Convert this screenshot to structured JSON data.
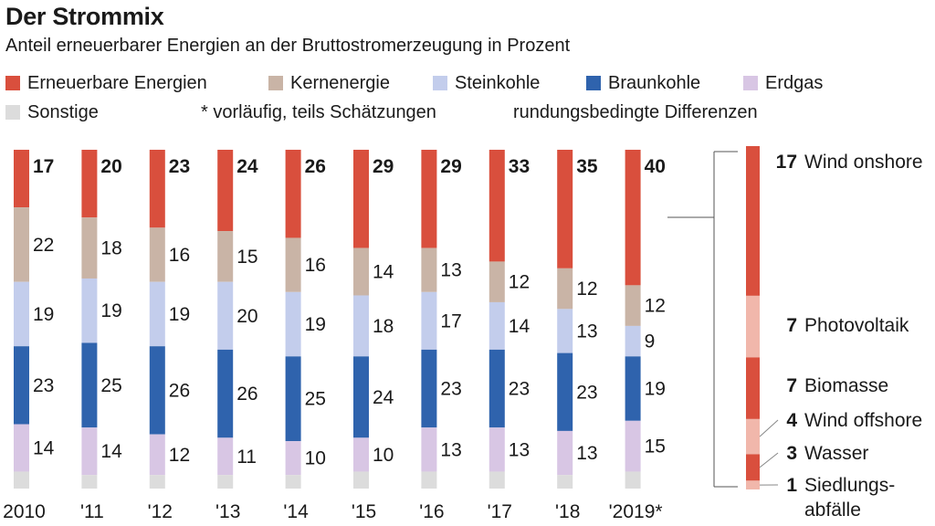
{
  "title": "Der Strommix",
  "subtitle": "Anteil erneuerbarer Energien an der Bruttostromerzeugung in Prozent",
  "legend": {
    "items": [
      {
        "label": "Erneuerbare Energien",
        "color": "#d94f3d"
      },
      {
        "label": "Kernenergie",
        "color": "#c9b4a6"
      },
      {
        "label": "Steinkohle",
        "color": "#c3cdec"
      },
      {
        "label": "Braunkohle",
        "color": "#2f63ad"
      },
      {
        "label": "Erdgas",
        "color": "#d8c6e4"
      },
      {
        "label": "Sonstige",
        "color": "#dcdcdc"
      }
    ],
    "note_preliminary": "* vorläufig, teils Schätzungen",
    "note_rounding": "rundungsbedingte Differenzen"
  },
  "chart_data": [
    {
      "type": "bar",
      "stacked": true,
      "categories": [
        "2010",
        "'11",
        "'12",
        "'13",
        "'14",
        "'15",
        "'16",
        "'17",
        "'18",
        "'2019*"
      ],
      "series": [
        {
          "name": "Erneuerbare Energien",
          "color": "#d94f3d",
          "values": [
            17,
            20,
            23,
            24,
            26,
            29,
            29,
            33,
            35,
            40
          ]
        },
        {
          "name": "Kernenergie",
          "color": "#c9b4a6",
          "values": [
            22,
            18,
            16,
            15,
            16,
            14,
            13,
            12,
            12,
            12
          ]
        },
        {
          "name": "Steinkohle",
          "color": "#c3cdec",
          "values": [
            19,
            19,
            19,
            20,
            19,
            18,
            17,
            14,
            13,
            9
          ]
        },
        {
          "name": "Braunkohle",
          "color": "#2f63ad",
          "values": [
            23,
            25,
            26,
            26,
            25,
            24,
            23,
            23,
            23,
            19
          ]
        },
        {
          "name": "Erdgas",
          "color": "#d8c6e4",
          "values": [
            14,
            14,
            12,
            11,
            10,
            10,
            13,
            13,
            13,
            15
          ]
        },
        {
          "name": "Sonstige",
          "color": "#dcdcdc",
          "values": [
            5,
            4,
            4,
            4,
            4,
            5,
            5,
            5,
            4,
            5
          ]
        }
      ],
      "ylim": [
        0,
        100
      ],
      "grid": false
    },
    {
      "type": "bar",
      "stacked": true,
      "categories": [
        "2019"
      ],
      "series": [
        {
          "name": "Wind onshore",
          "color": "#d94f3d",
          "values": [
            17
          ]
        },
        {
          "name": "Photovoltaik",
          "color": "#f1b7ab",
          "values": [
            7
          ]
        },
        {
          "name": "Biomasse",
          "color": "#d94f3d",
          "values": [
            7
          ]
        },
        {
          "name": "Wind offshore",
          "color": "#f1b7ab",
          "values": [
            4
          ]
        },
        {
          "name": "Wasser",
          "color": "#d94f3d",
          "values": [
            3
          ]
        },
        {
          "name": "Siedlungs-abfälle",
          "color": "#f1b7ab",
          "values": [
            1
          ]
        }
      ],
      "labels": [
        {
          "value": "17",
          "lines": [
            "Wind onshore"
          ]
        },
        {
          "value": "7",
          "lines": [
            "Photovoltaik"
          ]
        },
        {
          "value": "7",
          "lines": [
            "Biomasse"
          ]
        },
        {
          "value": "4",
          "lines": [
            "Wind offshore"
          ]
        },
        {
          "value": "3",
          "lines": [
            "Wasser"
          ]
        },
        {
          "value": "1",
          "lines": [
            "Siedlungs-",
            "abfälle"
          ]
        }
      ]
    }
  ]
}
